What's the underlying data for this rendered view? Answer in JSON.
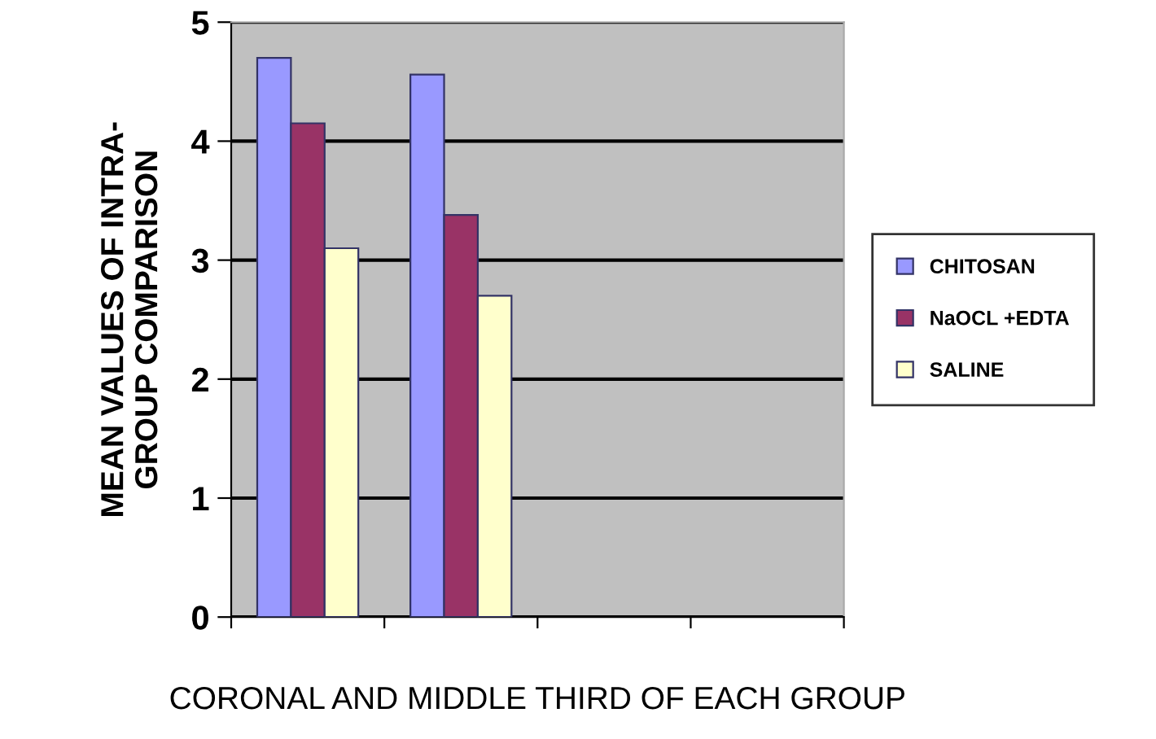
{
  "chart_data": {
    "type": "bar",
    "xlabel": "CORONAL AND MIDDLE THIRD OF EACH GROUP",
    "ylabel": "MEAN VALUES OF INTRA-\nGROUP COMPARISON",
    "categories": [
      null,
      null,
      null,
      null
    ],
    "series": [
      {
        "name": "CHITOSAN",
        "color": "#9999ff",
        "values": [
          4.7,
          4.56,
          null,
          null
        ]
      },
      {
        "name": "NaOCL +EDTA",
        "color": "#993366",
        "values": [
          4.15,
          3.38,
          null,
          null
        ]
      },
      {
        "name": "SALINE",
        "color": "#ffffcc",
        "values": [
          3.1,
          2.7,
          null,
          null
        ]
      }
    ],
    "ylim": [
      0,
      5
    ],
    "yticks": [
      0,
      1,
      2,
      3,
      4,
      5
    ],
    "grid": "y",
    "legend": "right"
  }
}
